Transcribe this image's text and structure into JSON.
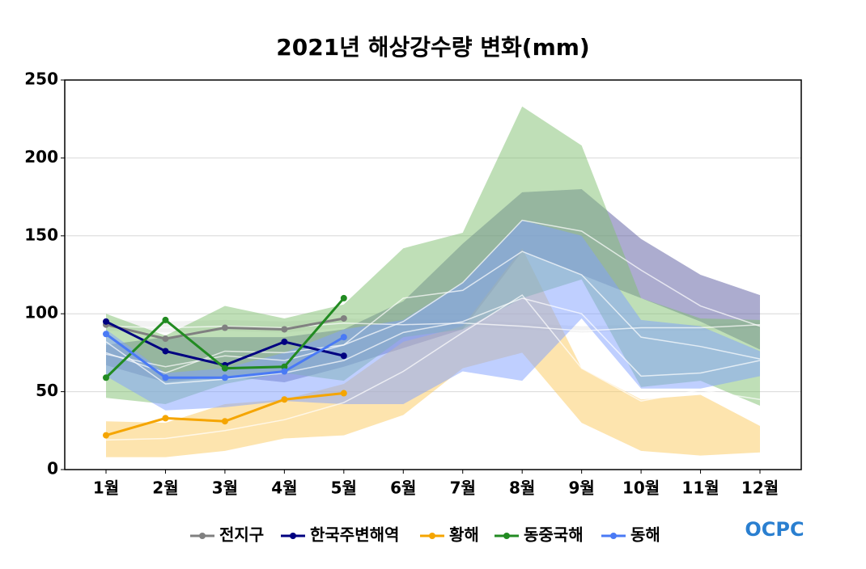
{
  "chart_data": {
    "type": "line",
    "title": "2021년 해상강수량 변화(mm)",
    "categories": [
      "1월",
      "2월",
      "3월",
      "4월",
      "5월",
      "6월",
      "7월",
      "8월",
      "9월",
      "10월",
      "11월",
      "12월"
    ],
    "ylim": [
      0,
      250
    ],
    "yticks": [
      0,
      50,
      100,
      150,
      200,
      250
    ],
    "grid": true,
    "legend": "bottom",
    "series": [
      {
        "name": "전지구",
        "color": "#808080",
        "band_color": "#e6e6e6",
        "values": [
          93,
          84,
          91,
          90,
          97,
          null,
          null,
          null,
          null,
          null,
          null,
          null
        ],
        "band_low": [
          89,
          88,
          89,
          88,
          91,
          91,
          92,
          90,
          88,
          89,
          89,
          91
        ],
        "band_high": [
          96,
          95,
          96,
          95,
          97,
          96,
          96,
          94,
          92,
          93,
          93,
          95
        ],
        "band_mean": [
          92,
          91,
          92,
          91,
          94,
          93,
          94,
          92,
          89,
          91,
          91,
          93
        ]
      },
      {
        "name": "한국주변해역",
        "color": "#000080",
        "band_color": "#5a5aa0",
        "values": [
          95,
          76,
          67,
          82,
          73,
          null,
          null,
          null,
          null,
          null,
          null,
          null
        ],
        "band_low": [
          67,
          56,
          60,
          56,
          66,
          78,
          90,
          140,
          125,
          110,
          95,
          77
        ],
        "band_high": [
          80,
          85,
          85,
          85,
          90,
          108,
          145,
          178,
          180,
          148,
          125,
          112
        ],
        "band_mean": [
          74,
          66,
          73,
          70,
          80,
          95,
          120,
          160,
          153,
          128,
          105,
          92
        ]
      },
      {
        "name": "황해",
        "color": "#f5a500",
        "band_color": "#fcc95e",
        "values": [
          22,
          33,
          31,
          45,
          49,
          null,
          null,
          null,
          null,
          null,
          null,
          null
        ],
        "band_low": [
          8,
          8,
          12,
          20,
          22,
          35,
          65,
          75,
          30,
          12,
          9,
          11
        ],
        "band_high": [
          31,
          30,
          42,
          45,
          55,
          82,
          92,
          142,
          65,
          45,
          48,
          28
        ],
        "band_mean": [
          19,
          20,
          25,
          32,
          43,
          63,
          88,
          112,
          65,
          44,
          51,
          45
        ]
      },
      {
        "name": "동중국해",
        "color": "#228b22",
        "band_color": "#7fbf6f",
        "values": [
          59,
          96,
          65,
          66,
          110,
          null,
          null,
          null,
          null,
          null,
          null,
          null
        ],
        "band_low": [
          46,
          42,
          55,
          62,
          57,
          85,
          90,
          110,
          122,
          53,
          57,
          41
        ],
        "band_high": [
          100,
          86,
          105,
          97,
          106,
          142,
          152,
          233,
          208,
          110,
          97,
          96
        ],
        "band_mean": [
          75,
          62,
          76,
          75,
          80,
          110,
          115,
          140,
          125,
          85,
          79,
          71
        ]
      },
      {
        "name": "동해",
        "color": "#4a7af5",
        "band_color": "#7f9fff",
        "values": [
          87,
          59,
          59,
          63,
          85,
          null,
          null,
          null,
          null,
          null,
          null,
          null
        ],
        "band_low": [
          60,
          38,
          40,
          44,
          42,
          42,
          63,
          57,
          97,
          52,
          52,
          60
        ],
        "band_high": [
          90,
          62,
          65,
          75,
          90,
          96,
          120,
          160,
          150,
          96,
          92,
          76
        ],
        "band_mean": [
          82,
          55,
          58,
          62,
          70,
          88,
          95,
          110,
          100,
          60,
          62,
          70
        ]
      }
    ],
    "logo": "OCPC"
  }
}
